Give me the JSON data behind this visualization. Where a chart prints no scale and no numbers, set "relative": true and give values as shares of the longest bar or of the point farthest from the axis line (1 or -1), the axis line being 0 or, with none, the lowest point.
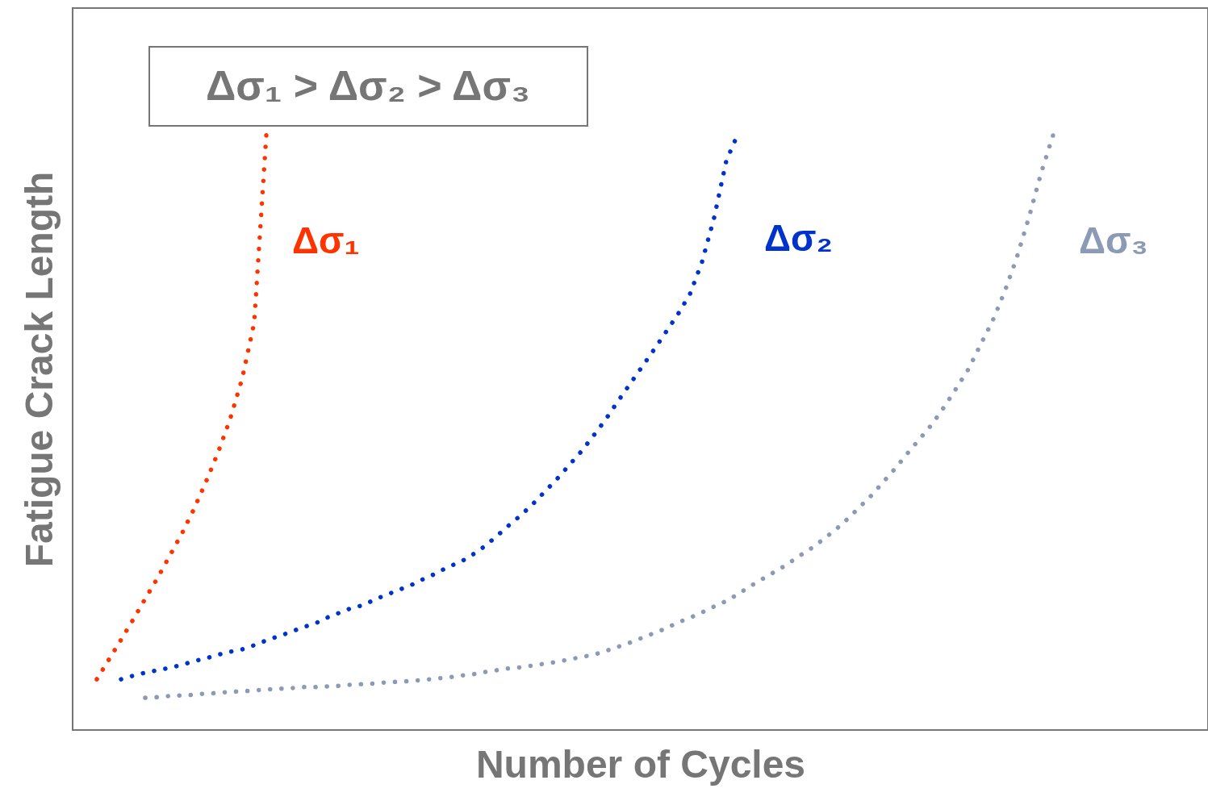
{
  "chart_data": {
    "type": "line",
    "relative": true,
    "xlabel": "Number of Cycles",
    "ylabel": "Fatigue Crack Length",
    "annotations": [
      "Δσ₁ > Δσ₂ > Δσ₃"
    ],
    "legend": false,
    "line_style": "dotted",
    "marker": "none",
    "categories": [
      null,
      null,
      null,
      null,
      null,
      null,
      null,
      null,
      null,
      null,
      null,
      null,
      null,
      null,
      null,
      null,
      null,
      null,
      null,
      null,
      null,
      null,
      null,
      null,
      null,
      null,
      null,
      null,
      null,
      null,
      null,
      null,
      null,
      null,
      null,
      null,
      null,
      null,
      null,
      null,
      null,
      null,
      null,
      null,
      null,
      null,
      null,
      null,
      null,
      null,
      null,
      null,
      null,
      null,
      null,
      null,
      null,
      null,
      null,
      null,
      null,
      null,
      null,
      null,
      null,
      null,
      null,
      null,
      null,
      null,
      null,
      null,
      null,
      null,
      null,
      null,
      null,
      null,
      null,
      null
    ],
    "series": [
      {
        "name": "Δσ₁",
        "color": "#ff3300",
        "values": [
          0.085,
          0.118,
          0.151,
          0.185,
          0.22,
          0.254,
          0.291,
          0.328,
          0.369,
          0.415,
          0.464,
          0.52,
          0.588,
          0.682,
          0.996,
          null,
          null,
          null,
          null,
          null,
          null,
          null,
          null,
          null,
          null,
          null,
          null,
          null,
          null,
          null,
          null,
          null,
          null,
          null,
          null,
          null,
          null,
          null,
          null,
          null,
          null,
          null,
          null,
          null,
          null,
          null,
          null,
          null,
          null,
          null,
          null,
          null,
          null,
          null,
          null,
          null,
          null,
          null,
          null,
          null,
          null,
          null,
          null,
          null,
          null,
          null,
          null,
          null,
          null,
          null,
          null,
          null,
          null,
          null,
          null,
          null,
          null,
          null,
          null,
          null
        ]
      },
      {
        "name": "Δσ₂",
        "color": "#0033cc",
        "values": [
          null,
          null,
          0.085,
          0.091,
          0.096,
          0.1,
          0.104,
          0.109,
          0.115,
          0.12,
          0.126,
          0.131,
          0.135,
          0.142,
          0.15,
          0.157,
          0.164,
          0.172,
          0.178,
          0.188,
          0.196,
          0.204,
          0.209,
          0.219,
          0.227,
          0.235,
          0.243,
          0.253,
          0.262,
          0.273,
          0.281,
          0.293,
          0.307,
          0.324,
          0.342,
          0.359,
          0.378,
          0.399,
          0.42,
          0.443,
          0.466,
          0.492,
          0.519,
          0.549,
          0.578,
          0.607,
          0.636,
          0.666,
          0.696,
          0.73,
          0.784,
          0.858,
          0.953,
          1.0,
          null,
          null,
          null,
          null,
          null,
          null,
          null,
          null,
          null,
          null,
          null,
          null,
          null,
          null,
          null,
          null,
          null,
          null,
          null,
          null,
          null,
          null,
          null,
          null,
          null,
          null
        ]
      },
      {
        "name": "Δσ₃",
        "color": "#8c9bb5",
        "values": [
          null,
          null,
          null,
          null,
          0.054,
          0.055,
          0.057,
          0.058,
          0.059,
          0.061,
          0.062,
          0.064,
          0.065,
          0.066,
          0.068,
          0.069,
          0.07,
          0.072,
          0.072,
          0.073,
          0.074,
          0.076,
          0.077,
          0.078,
          0.08,
          0.081,
          0.082,
          0.084,
          0.086,
          0.088,
          0.091,
          0.093,
          0.097,
          0.1,
          0.103,
          0.105,
          0.108,
          0.111,
          0.114,
          0.118,
          0.122,
          0.126,
          0.132,
          0.139,
          0.146,
          0.154,
          0.162,
          0.17,
          0.18,
          0.188,
          0.197,
          0.207,
          0.216,
          0.228,
          0.241,
          0.253,
          0.265,
          0.277,
          0.291,
          0.304,
          0.319,
          0.335,
          0.353,
          0.373,
          0.393,
          0.416,
          0.439,
          0.464,
          0.488,
          0.512,
          0.541,
          0.572,
          0.604,
          0.645,
          0.685,
          0.734,
          0.791,
          0.858,
          0.932,
          0.996
        ]
      }
    ]
  }
}
